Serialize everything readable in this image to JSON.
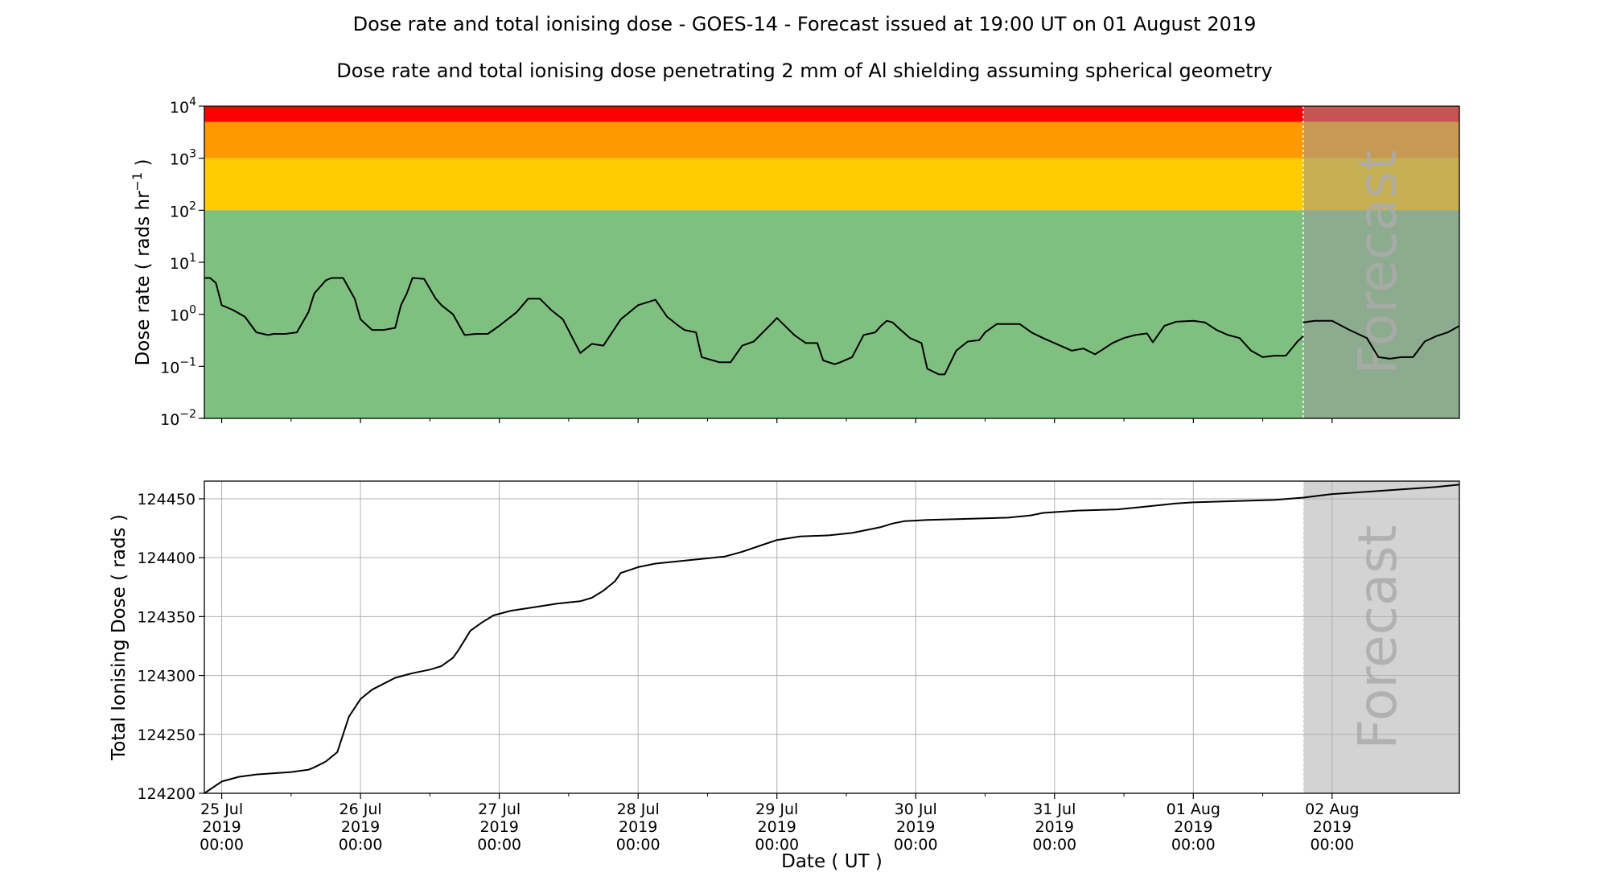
{
  "title": "Dose rate and total ionising dose - GOES-14 - Forecast issued at 19:00 UT on 01 August 2019",
  "subtitle": "Dose rate and total ionising dose penetrating 2 mm of Al shielding assuming spherical geometry",
  "colors": {
    "band_red": "#ff0000",
    "band_orange": "#ff9900",
    "band_yellow": "#ffcc00",
    "band_green": "#7fc080",
    "forecast_gray": "#d3d3d3",
    "line": "#000000"
  },
  "forecast_label": "Forecast",
  "chart_data": [
    {
      "type": "line",
      "ylabel_prefix": "Dose rate ( rads hr",
      "ylabel_exp": "−1",
      "ylabel_suffix": " )",
      "yscale": "log",
      "ylim": [
        0.01,
        10000
      ],
      "yticks": [
        {
          "base": "10",
          "exp": "4"
        },
        {
          "base": "10",
          "exp": "3"
        },
        {
          "base": "10",
          "exp": "2"
        },
        {
          "base": "10",
          "exp": "1"
        },
        {
          "base": "10",
          "exp": "0"
        },
        {
          "base": "10",
          "exp": "−1"
        },
        {
          "base": "10",
          "exp": "−2"
        }
      ],
      "ytick_values": [
        10000,
        1000,
        100,
        10,
        1,
        0.1,
        0.01
      ],
      "xlim": [
        "2019-07-24T21:00",
        "2019-08-02T22:00"
      ],
      "forecast_start": "2019-08-01T19:00",
      "grid": false,
      "threshold_bands": [
        {
          "from": 5000,
          "to": 10000,
          "color": "#ff0000"
        },
        {
          "from": 1000,
          "to": 5000,
          "color": "#ff9900"
        },
        {
          "from": 100,
          "to": 1000,
          "color": "#ffcc00"
        },
        {
          "from": 0.01,
          "to": 100,
          "color": "#7fc080"
        }
      ],
      "series": [
        {
          "x": [
            "2019-07-24T21:00",
            "2019-07-24T22:00",
            "2019-07-24T23:00",
            "2019-07-25T00:00",
            "2019-07-25T02:00",
            "2019-07-25T04:00",
            "2019-07-25T06:00",
            "2019-07-25T08:00",
            "2019-07-25T09:00",
            "2019-07-25T11:00",
            "2019-07-25T13:00",
            "2019-07-25T15:00",
            "2019-07-25T16:00",
            "2019-07-25T18:00",
            "2019-07-25T19:00",
            "2019-07-25T21:00",
            "2019-07-25T23:00",
            "2019-07-26T00:00",
            "2019-07-26T02:00",
            "2019-07-26T04:00",
            "2019-07-26T06:00",
            "2019-07-26T07:00",
            "2019-07-26T08:00",
            "2019-07-26T09:00",
            "2019-07-26T11:00",
            "2019-07-26T13:00",
            "2019-07-26T14:00",
            "2019-07-26T16:00",
            "2019-07-26T18:00",
            "2019-07-26T20:00",
            "2019-07-26T22:00",
            "2019-07-27T00:00",
            "2019-07-27T03:00",
            "2019-07-27T05:00",
            "2019-07-27T07:00",
            "2019-07-27T09:00",
            "2019-07-27T11:00",
            "2019-07-27T14:00",
            "2019-07-27T16:00",
            "2019-07-27T18:00",
            "2019-07-27T21:00",
            "2019-07-28T00:00",
            "2019-07-28T03:00",
            "2019-07-28T05:00",
            "2019-07-28T07:00",
            "2019-07-28T08:00",
            "2019-07-28T10:00",
            "2019-07-28T11:00",
            "2019-07-28T14:00",
            "2019-07-28T16:00",
            "2019-07-28T18:00",
            "2019-07-28T20:00",
            "2019-07-28T23:00",
            "2019-07-29T00:00",
            "2019-07-29T03:00",
            "2019-07-29T05:00",
            "2019-07-29T07:00",
            "2019-07-29T08:00",
            "2019-07-29T10:00",
            "2019-07-29T11:00",
            "2019-07-29T13:00",
            "2019-07-29T15:00",
            "2019-07-29T17:00",
            "2019-07-29T18:00",
            "2019-07-29T19:00",
            "2019-07-29T20:00",
            "2019-07-29T21:00",
            "2019-07-29T23:00",
            "2019-07-30T01:00",
            "2019-07-30T02:00",
            "2019-07-30T04:00",
            "2019-07-30T05:00",
            "2019-07-30T07:00",
            "2019-07-30T09:00",
            "2019-07-30T11:00",
            "2019-07-30T12:00",
            "2019-07-30T14:00",
            "2019-07-30T16:00",
            "2019-07-30T18:00",
            "2019-07-30T20:00",
            "2019-07-30T22:00",
            "2019-07-31T00:00",
            "2019-07-31T03:00",
            "2019-07-31T05:00",
            "2019-07-31T07:00",
            "2019-07-31T08:00",
            "2019-07-31T10:00",
            "2019-07-31T12:00",
            "2019-07-31T14:00",
            "2019-07-31T16:00",
            "2019-07-31T17:00",
            "2019-07-31T19:00",
            "2019-07-31T21:00",
            "2019-08-01T00:00",
            "2019-08-01T02:00",
            "2019-08-01T04:00",
            "2019-08-01T06:00",
            "2019-08-01T08:00",
            "2019-08-01T10:00",
            "2019-08-01T12:00",
            "2019-08-01T14:00",
            "2019-08-01T16:00",
            "2019-08-01T18:00",
            "2019-08-01T19:00"
          ],
          "values": [
            5,
            5,
            4,
            1.5,
            1.2,
            0.9,
            0.45,
            0.4,
            0.42,
            0.42,
            0.45,
            1.1,
            2.5,
            4.5,
            5,
            5,
            2,
            0.8,
            0.5,
            0.5,
            0.55,
            1.5,
            2.5,
            5,
            4.8,
            2,
            1.5,
            1,
            0.4,
            0.42,
            0.42,
            0.6,
            1.1,
            2,
            2,
            1.2,
            0.8,
            0.18,
            0.27,
            0.25,
            0.8,
            1.5,
            1.9,
            0.9,
            0.6,
            0.5,
            0.45,
            0.15,
            0.12,
            0.12,
            0.25,
            0.3,
            0.65,
            0.85,
            0.4,
            0.28,
            0.28,
            0.13,
            0.11,
            0.12,
            0.15,
            0.4,
            0.45,
            0.6,
            0.75,
            0.7,
            0.55,
            0.35,
            0.28,
            0.09,
            0.07,
            0.07,
            0.2,
            0.3,
            0.32,
            0.45,
            0.65,
            0.65,
            0.65,
            0.45,
            0.35,
            0.28,
            0.2,
            0.22,
            0.17,
            0.2,
            0.28,
            0.35,
            0.4,
            0.43,
            0.29,
            0.6,
            0.72,
            0.75,
            0.7,
            0.5,
            0.4,
            0.35,
            0.2,
            0.15,
            0.16,
            0.16,
            0.3,
            0.38
          ]
        },
        {
          "x": [
            "2019-08-01T19:00",
            "2019-08-01T21:00",
            "2019-08-02T00:00",
            "2019-08-02T03:00",
            "2019-08-02T06:00",
            "2019-08-02T08:00",
            "2019-08-02T10:00",
            "2019-08-02T12:00",
            "2019-08-02T14:00",
            "2019-08-02T16:00",
            "2019-08-02T18:00",
            "2019-08-02T20:00",
            "2019-08-02T22:00"
          ],
          "values": [
            0.7,
            0.75,
            0.75,
            0.5,
            0.35,
            0.15,
            0.14,
            0.15,
            0.15,
            0.3,
            0.38,
            0.45,
            0.6
          ]
        }
      ]
    },
    {
      "type": "line",
      "ylabel": "Total Ionising Dose ( rads )",
      "xlabel": "Date ( UT )",
      "ylim": [
        124200,
        124465
      ],
      "yticks": [
        124200,
        124250,
        124300,
        124350,
        124400,
        124450
      ],
      "xlim": [
        "2019-07-24T21:00",
        "2019-08-02T22:00"
      ],
      "forecast_start": "2019-08-01T19:00",
      "grid": true,
      "xticks": [
        {
          "value": "2019-07-25T00:00",
          "lines": [
            "25 Jul",
            "2019",
            "00:00"
          ]
        },
        {
          "value": "2019-07-26T00:00",
          "lines": [
            "26 Jul",
            "2019",
            "00:00"
          ]
        },
        {
          "value": "2019-07-27T00:00",
          "lines": [
            "27 Jul",
            "2019",
            "00:00"
          ]
        },
        {
          "value": "2019-07-28T00:00",
          "lines": [
            "28 Jul",
            "2019",
            "00:00"
          ]
        },
        {
          "value": "2019-07-29T00:00",
          "lines": [
            "29 Jul",
            "2019",
            "00:00"
          ]
        },
        {
          "value": "2019-07-30T00:00",
          "lines": [
            "30 Jul",
            "2019",
            "00:00"
          ]
        },
        {
          "value": "2019-07-31T00:00",
          "lines": [
            "31 Jul",
            "2019",
            "00:00"
          ]
        },
        {
          "value": "2019-08-01T00:00",
          "lines": [
            "01 Aug",
            "2019",
            "00:00"
          ]
        },
        {
          "value": "2019-08-02T00:00",
          "lines": [
            "02 Aug",
            "2019",
            "00:00"
          ]
        }
      ],
      "series": [
        {
          "x": [
            "2019-07-24T21:00",
            "2019-07-25T00:00",
            "2019-07-25T03:00",
            "2019-07-25T06:00",
            "2019-07-25T09:00",
            "2019-07-25T12:00",
            "2019-07-25T15:00",
            "2019-07-25T16:00",
            "2019-07-25T18:00",
            "2019-07-25T20:00",
            "2019-07-25T21:00",
            "2019-07-25T22:00",
            "2019-07-26T00:00",
            "2019-07-26T02:00",
            "2019-07-26T04:00",
            "2019-07-26T06:00",
            "2019-07-26T09:00",
            "2019-07-26T12:00",
            "2019-07-26T14:00",
            "2019-07-26T16:00",
            "2019-07-26T17:00",
            "2019-07-26T18:00",
            "2019-07-26T19:00",
            "2019-07-26T21:00",
            "2019-07-26T23:00",
            "2019-07-27T02:00",
            "2019-07-27T06:00",
            "2019-07-27T10:00",
            "2019-07-27T14:00",
            "2019-07-27T16:00",
            "2019-07-27T18:00",
            "2019-07-27T20:00",
            "2019-07-27T21:00",
            "2019-07-28T00:00",
            "2019-07-28T03:00",
            "2019-07-28T09:00",
            "2019-07-28T15:00",
            "2019-07-28T18:00",
            "2019-07-28T21:00",
            "2019-07-29T00:00",
            "2019-07-29T04:00",
            "2019-07-29T09:00",
            "2019-07-29T13:00",
            "2019-07-29T15:00",
            "2019-07-29T18:00",
            "2019-07-29T20:00",
            "2019-07-29T22:00",
            "2019-07-30T02:00",
            "2019-07-30T09:00",
            "2019-07-30T16:00",
            "2019-07-30T20:00",
            "2019-07-30T22:00",
            "2019-07-31T04:00",
            "2019-07-31T11:00",
            "2019-07-31T15:00",
            "2019-07-31T21:00",
            "2019-08-01T00:00",
            "2019-08-01T07:00",
            "2019-08-01T14:00",
            "2019-08-01T19:00"
          ],
          "values": [
            124200,
            124210,
            124214,
            124216,
            124217,
            124218,
            124220,
            124222,
            124227,
            124235,
            124250,
            124265,
            124280,
            124288,
            124293,
            124298,
            124302,
            124305,
            124308,
            124315,
            124322,
            124330,
            124338,
            124345,
            124351,
            124355,
            124358,
            124361,
            124363,
            124366,
            124372,
            124380,
            124387,
            124392,
            124395,
            124398,
            124401,
            124405,
            124410,
            124415,
            124418,
            124419,
            124421,
            124423,
            124426,
            124429,
            124431,
            124432,
            124433,
            124434,
            124436,
            124438,
            124440,
            124441,
            124443,
            124446,
            124447,
            124448,
            124449,
            124451
          ]
        },
        {
          "x": [
            "2019-08-01T19:00",
            "2019-08-02T00:00",
            "2019-08-02T06:00",
            "2019-08-02T12:00",
            "2019-08-02T18:00",
            "2019-08-02T22:00"
          ],
          "values": [
            124451,
            124454,
            124456,
            124458,
            124460,
            124462
          ]
        }
      ]
    }
  ]
}
